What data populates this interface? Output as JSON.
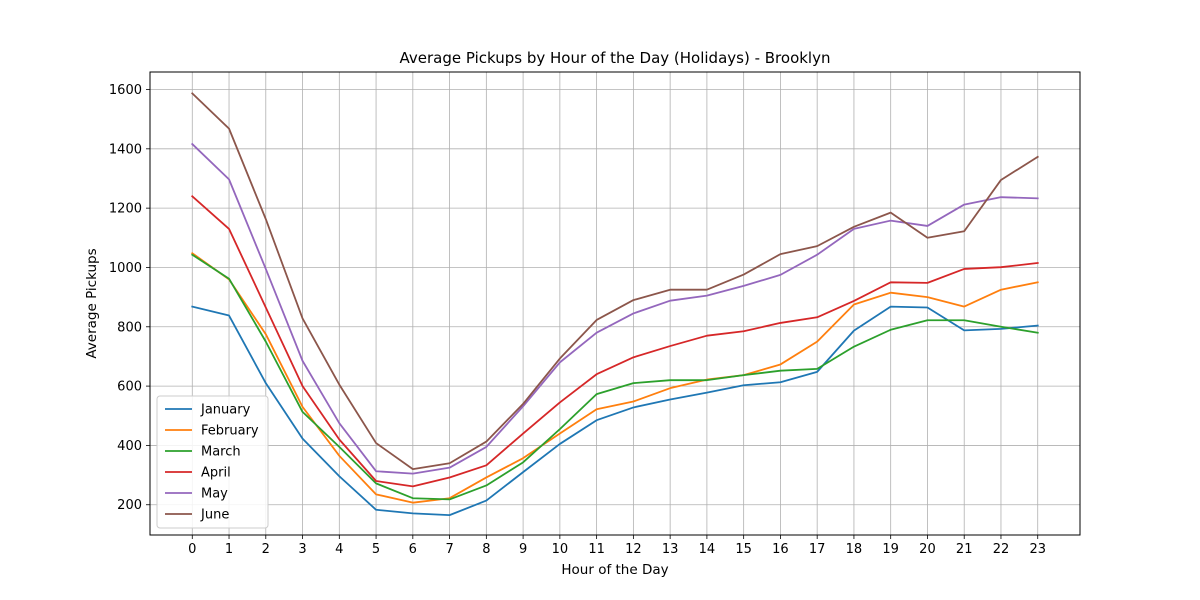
{
  "chart_data": {
    "type": "line",
    "title": "Average Pickups by Hour of the Day (Holidays) - Brooklyn",
    "xlabel": "Hour of the Day",
    "ylabel": "Average Pickups",
    "x": [
      0,
      1,
      2,
      3,
      4,
      5,
      6,
      7,
      8,
      9,
      10,
      11,
      12,
      13,
      14,
      15,
      16,
      17,
      18,
      19,
      20,
      21,
      22,
      23
    ],
    "xlim": [
      -1.15,
      24.15
    ],
    "ylim": [
      98,
      1659
    ],
    "yticks": [
      200,
      400,
      600,
      800,
      1000,
      1200,
      1400,
      1600
    ],
    "grid": true,
    "legend_position": "lower-left",
    "series": [
      {
        "name": "January",
        "color": "#1f77b4",
        "values": [
          868,
          838,
          610,
          423,
          296,
          183,
          171,
          165,
          214,
          310,
          405,
          485,
          528,
          555,
          578,
          603,
          613,
          648,
          787,
          868,
          865,
          788,
          793,
          804
        ]
      },
      {
        "name": "February",
        "color": "#ff7f0e",
        "values": [
          1048,
          960,
          775,
          530,
          365,
          235,
          207,
          222,
          292,
          357,
          440,
          522,
          548,
          593,
          622,
          637,
          673,
          750,
          875,
          915,
          900,
          868,
          925,
          950
        ]
      },
      {
        "name": "March",
        "color": "#2ca02c",
        "values": [
          1043,
          962,
          750,
          513,
          395,
          272,
          222,
          218,
          265,
          343,
          455,
          573,
          610,
          620,
          620,
          637,
          652,
          658,
          733,
          790,
          822,
          822,
          800,
          780
        ]
      },
      {
        "name": "April",
        "color": "#d62728",
        "values": [
          1240,
          1130,
          865,
          600,
          420,
          280,
          262,
          292,
          333,
          440,
          545,
          640,
          697,
          735,
          770,
          785,
          813,
          832,
          887,
          950,
          948,
          995,
          1001,
          1015
        ]
      },
      {
        "name": "May",
        "color": "#9467bd",
        "values": [
          1416,
          1297,
          995,
          685,
          475,
          313,
          305,
          325,
          395,
          532,
          680,
          780,
          845,
          888,
          905,
          938,
          975,
          1043,
          1130,
          1158,
          1140,
          1212,
          1237,
          1233
        ]
      },
      {
        "name": "June",
        "color": "#8c564b",
        "values": [
          1587,
          1468,
          1163,
          828,
          605,
          408,
          320,
          340,
          413,
          540,
          693,
          823,
          890,
          925,
          925,
          976,
          1045,
          1072,
          1137,
          1185,
          1100,
          1122,
          1295,
          1373
        ]
      }
    ]
  }
}
